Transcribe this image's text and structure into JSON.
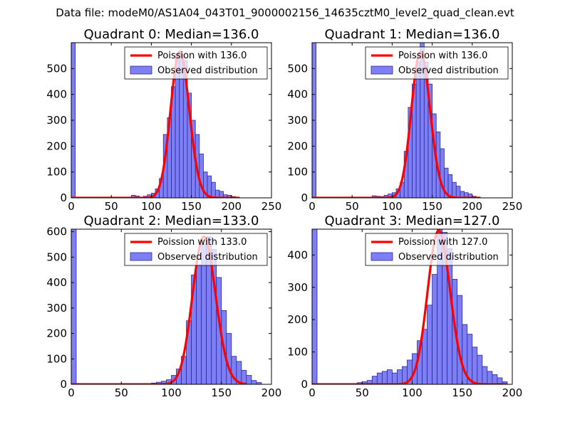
{
  "figure": {
    "suptitle": "Data file: modeM0/AS1A04_043T01_9000002156_14635cztM0_level2_quad_clean.evt"
  },
  "colors": {
    "hist_fill": "#7f7ff5",
    "hist_edge": "#2a2a9a",
    "poisson_line": "#ff0000"
  },
  "chart_data": [
    {
      "type": "bar",
      "title": "Quadrant 0: Median=136.0",
      "xlim": [
        0,
        250
      ],
      "ylim": [
        0,
        600
      ],
      "xticks": [
        0,
        50,
        100,
        150,
        200,
        250
      ],
      "yticks": [
        0,
        100,
        200,
        300,
        400,
        500
      ],
      "bin_width": 5,
      "hist_left_edges": [
        0,
        75,
        80,
        85,
        90,
        95,
        100,
        105,
        110,
        115,
        120,
        125,
        130,
        135,
        140,
        145,
        150,
        155,
        160,
        165,
        170,
        175,
        180,
        185,
        190,
        195,
        200,
        205
      ],
      "hist_counts": [
        600,
        10,
        7,
        3,
        6,
        12,
        18,
        35,
        75,
        245,
        310,
        430,
        555,
        555,
        530,
        405,
        300,
        245,
        170,
        100,
        85,
        60,
        30,
        25,
        12,
        10,
        5,
        3
      ],
      "legend": [
        "Poission with 136.0",
        "Observed distribution"
      ],
      "legend_position": "top-right",
      "poisson_lambda": 136.0,
      "poisson_peak": 565,
      "poisson_x_range": [
        0,
        210
      ]
    },
    {
      "type": "bar",
      "title": "Quadrant 1: Median=136.0",
      "xlim": [
        0,
        250
      ],
      "ylim": [
        0,
        600
      ],
      "xticks": [
        0,
        50,
        100,
        150,
        200,
        250
      ],
      "yticks": [
        0,
        100,
        200,
        300,
        400,
        500
      ],
      "bin_width": 5,
      "hist_left_edges": [
        0,
        75,
        80,
        85,
        90,
        95,
        100,
        105,
        110,
        115,
        120,
        125,
        130,
        135,
        140,
        145,
        150,
        155,
        160,
        165,
        170,
        175,
        180,
        185,
        190,
        195,
        200,
        205
      ],
      "hist_counts": [
        600,
        8,
        6,
        5,
        10,
        15,
        20,
        35,
        60,
        180,
        350,
        440,
        525,
        600,
        525,
        440,
        325,
        255,
        190,
        115,
        90,
        60,
        45,
        25,
        20,
        15,
        6,
        3
      ],
      "legend": [
        "Poission with 136.0",
        "Observed distribution"
      ],
      "legend_position": "top-right",
      "poisson_lambda": 136.0,
      "poisson_peak": 565,
      "poisson_x_range": [
        0,
        210
      ]
    },
    {
      "type": "bar",
      "title": "Quadrant 2: Median=133.0",
      "xlim": [
        0,
        200
      ],
      "ylim": [
        0,
        610
      ],
      "xticks": [
        0,
        50,
        100,
        150,
        200
      ],
      "yticks": [
        0,
        100,
        200,
        300,
        400,
        500,
        600
      ],
      "bin_width": 5,
      "hist_left_edges": [
        0,
        80,
        85,
        90,
        95,
        100,
        105,
        110,
        115,
        120,
        125,
        130,
        135,
        140,
        145,
        150,
        155,
        160,
        165,
        170,
        175,
        180,
        185
      ],
      "hist_counts": [
        610,
        5,
        8,
        12,
        18,
        35,
        60,
        110,
        250,
        430,
        470,
        550,
        580,
        530,
        420,
        290,
        200,
        110,
        90,
        55,
        35,
        15,
        7
      ],
      "legend": [
        "Poission with 133.0",
        "Observed distribution"
      ],
      "legend_position": "top-right",
      "poisson_lambda": 133.0,
      "poisson_peak": 580,
      "poisson_x_range": [
        0,
        175
      ]
    },
    {
      "type": "bar",
      "title": "Quadrant 3: Median=127.0",
      "xlim": [
        0,
        200
      ],
      "ylim": [
        0,
        480
      ],
      "xticks": [
        0,
        50,
        100,
        150,
        200
      ],
      "yticks": [
        0,
        100,
        200,
        300,
        400
      ],
      "bin_width": 5,
      "hist_left_edges": [
        0,
        45,
        50,
        55,
        60,
        65,
        70,
        75,
        80,
        85,
        90,
        95,
        100,
        105,
        110,
        115,
        120,
        125,
        130,
        135,
        140,
        145,
        150,
        155,
        160,
        165,
        170,
        175,
        180,
        185,
        190
      ],
      "hist_counts": [
        480,
        5,
        8,
        12,
        25,
        35,
        40,
        45,
        35,
        45,
        55,
        75,
        95,
        135,
        170,
        245,
        340,
        480,
        470,
        420,
        325,
        275,
        185,
        155,
        115,
        90,
        55,
        40,
        30,
        20,
        8
      ],
      "legend": [
        "Poission with 127.0",
        "Observed distribution"
      ],
      "legend_position": "top-right",
      "poisson_lambda": 127.0,
      "poisson_peak": 475,
      "poisson_x_range": [
        0,
        195
      ]
    }
  ]
}
